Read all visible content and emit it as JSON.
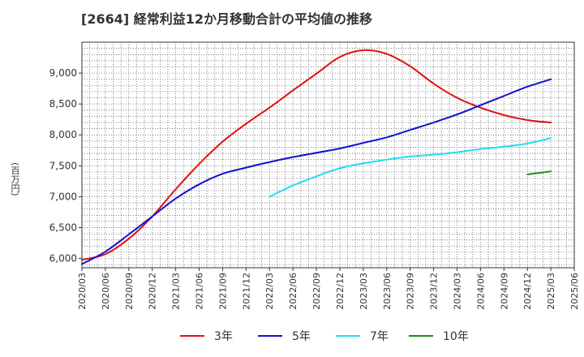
{
  "chart_data": {
    "type": "line",
    "title": "[2664]  経常利益12か月移動合計の平均値の推移",
    "ylabel": "(百万円)",
    "xlabel": "",
    "ylim": [
      5850,
      9500
    ],
    "xlim": [
      "2020/03",
      "2025/06"
    ],
    "grid": true,
    "legend_position": "bottom",
    "y_ticks": [
      "6,000",
      "6,500",
      "7,000",
      "7,500",
      "8,000",
      "8,500",
      "9,000"
    ],
    "y_tick_values": [
      6000,
      6500,
      7000,
      7500,
      8000,
      8500,
      9000
    ],
    "x_ticks": [
      "2020/03",
      "2020/06",
      "2020/09",
      "2020/12",
      "2021/03",
      "2021/06",
      "2021/09",
      "2021/12",
      "2022/03",
      "2022/06",
      "2022/09",
      "2022/12",
      "2023/03",
      "2023/06",
      "2023/09",
      "2023/12",
      "2024/03",
      "2024/06",
      "2024/09",
      "2024/12",
      "2025/03",
      "2025/06"
    ],
    "series": [
      {
        "name": "3年",
        "color": "#dd1111",
        "x": [
          "2020/03",
          "2020/06",
          "2020/09",
          "2020/12",
          "2021/03",
          "2021/06",
          "2021/09",
          "2021/12",
          "2022/03",
          "2022/06",
          "2022/09",
          "2022/12",
          "2023/03",
          "2023/06",
          "2023/09",
          "2023/12",
          "2024/03",
          "2024/06",
          "2024/09",
          "2024/12",
          "2025/03"
        ],
        "values": [
          5980,
          6070,
          6320,
          6680,
          7120,
          7530,
          7890,
          8180,
          8440,
          8720,
          8990,
          9260,
          9370,
          9310,
          9110,
          8830,
          8600,
          8440,
          8320,
          8240,
          8200
        ]
      },
      {
        "name": "5年",
        "color": "#1111cc",
        "x": [
          "2020/03",
          "2020/06",
          "2020/09",
          "2020/12",
          "2021/03",
          "2021/06",
          "2021/09",
          "2021/12",
          "2022/03",
          "2022/06",
          "2022/09",
          "2022/12",
          "2023/03",
          "2023/06",
          "2023/09",
          "2023/12",
          "2024/03",
          "2024/06",
          "2024/09",
          "2024/12",
          "2025/03"
        ],
        "values": [
          5910,
          6110,
          6390,
          6680,
          6970,
          7200,
          7370,
          7470,
          7560,
          7640,
          7710,
          7780,
          7870,
          7960,
          8080,
          8200,
          8330,
          8480,
          8630,
          8780,
          8900
        ]
      },
      {
        "name": "7年",
        "color": "#22ddee",
        "x": [
          "2022/03",
          "2022/06",
          "2022/09",
          "2022/12",
          "2023/03",
          "2023/06",
          "2023/09",
          "2023/12",
          "2024/03",
          "2024/06",
          "2024/09",
          "2024/12",
          "2025/03"
        ],
        "values": [
          7000,
          7180,
          7330,
          7460,
          7540,
          7600,
          7650,
          7680,
          7720,
          7770,
          7810,
          7860,
          7950
        ]
      },
      {
        "name": "10年",
        "color": "#228822",
        "x": [
          "2024/12",
          "2025/03"
        ],
        "values": [
          7360,
          7410
        ]
      }
    ]
  }
}
